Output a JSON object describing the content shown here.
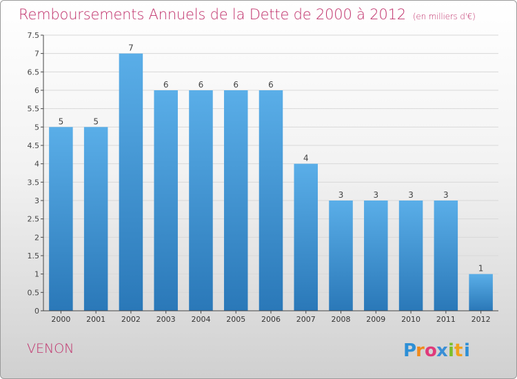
{
  "header": {
    "title": "Remboursements Annuels de la Dette de 2000 à 2012",
    "unit": "(en milliers d'€)"
  },
  "footer": {
    "commune": "VENON",
    "logo_text": "Proxiti"
  },
  "colors": {
    "title": "#c0306a",
    "bar_top": "#5aaee8",
    "bar_bottom": "#2a78b8",
    "axis": "#444444",
    "grid": "#d8d8d8"
  },
  "chart_data": {
    "type": "bar",
    "title": "Remboursements Annuels de la Dette de 2000 à 2012",
    "subtitle": "(en milliers d'€)",
    "xlabel": "",
    "ylabel": "",
    "categories": [
      "2000",
      "2001",
      "2002",
      "2003",
      "2004",
      "2005",
      "2006",
      "2007",
      "2008",
      "2009",
      "2010",
      "2011",
      "2012"
    ],
    "values": [
      5,
      5,
      7,
      6,
      6,
      6,
      6,
      4,
      3,
      3,
      3,
      3,
      1
    ],
    "data_labels": [
      "5",
      "5",
      "7",
      "6",
      "6",
      "6",
      "6",
      "4",
      "3",
      "3",
      "3",
      "3",
      "1"
    ],
    "ylim": [
      0,
      7.5
    ],
    "yticks": [
      0,
      0.5,
      1,
      1.5,
      2,
      2.5,
      3,
      3.5,
      4,
      4.5,
      5,
      5.5,
      6,
      6.5,
      7,
      7.5
    ],
    "ytick_labels": [
      "0",
      "0.5",
      "1",
      "1.5",
      "2",
      "2.5",
      "3",
      "3.5",
      "4",
      "4.5",
      "5",
      "5.5",
      "6",
      "6.5",
      "7",
      "7.5"
    ],
    "grid": true,
    "legend": "none"
  }
}
